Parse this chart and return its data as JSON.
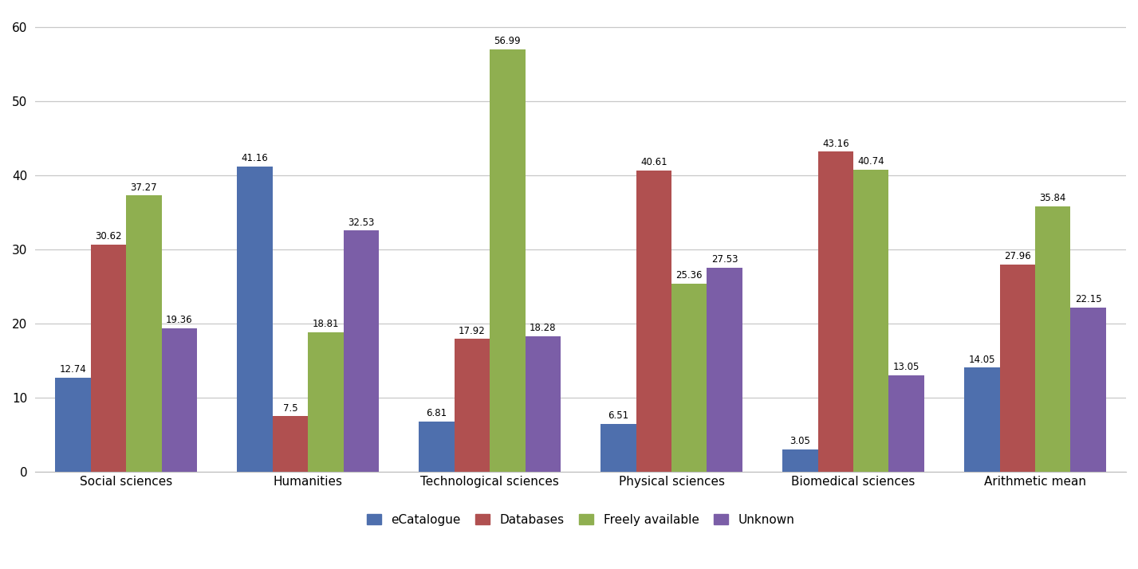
{
  "categories": [
    "Social sciences",
    "Humanities",
    "Technological sciences",
    "Physical sciences",
    "Biomedical sciences",
    "Arithmetic mean"
  ],
  "series": {
    "eCatalogue": [
      12.74,
      41.16,
      6.81,
      6.51,
      3.05,
      14.05
    ],
    "Databases": [
      30.62,
      7.5,
      17.92,
      40.61,
      43.16,
      27.96
    ],
    "Freely available": [
      37.27,
      18.81,
      56.99,
      25.36,
      40.74,
      35.84
    ],
    "Unknown": [
      19.36,
      32.53,
      18.28,
      27.53,
      13.05,
      22.15
    ]
  },
  "series_order": [
    "eCatalogue",
    "Databases",
    "Freely available",
    "Unknown"
  ],
  "colors": {
    "eCatalogue": "#4e6fad",
    "Databases": "#b05050",
    "Freely available": "#8faf50",
    "Unknown": "#7b5ea7"
  },
  "ylim": [
    0,
    62
  ],
  "yticks": [
    0,
    10,
    20,
    30,
    40,
    50,
    60
  ],
  "bar_width": 0.195,
  "figsize": [
    14.27,
    7.14
  ],
  "dpi": 100,
  "background_color": "#ffffff",
  "grid_color": "#c8c8c8",
  "label_fontsize": 8.5,
  "axis_fontsize": 11,
  "legend_fontsize": 11
}
